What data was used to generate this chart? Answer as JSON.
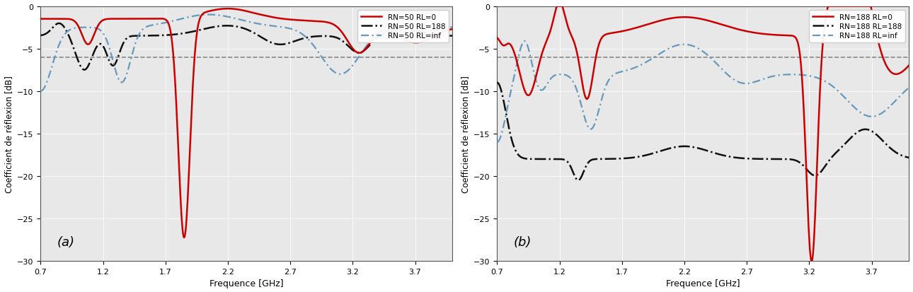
{
  "title_a": "(a)",
  "title_b": "(b)",
  "xlabel": "Frequence [GHz]",
  "ylabel": "Coefficient de réflexion [dB]",
  "xlim": [
    0.7,
    4.0
  ],
  "ylim": [
    -30,
    0
  ],
  "yticks": [
    0,
    -5,
    -10,
    -15,
    -20,
    -25,
    -30
  ],
  "xticks": [
    0.7,
    1.2,
    1.7,
    2.2,
    2.7,
    3.2,
    3.7
  ],
  "hline_y": -6.0,
  "hline_color": "#888888",
  "color_red": "#cc0000",
  "color_black": "#111111",
  "color_blue": "#6699bb",
  "legend_a": [
    "RN=50 RL=0",
    "RN=50 RL=188",
    "RN=50 RL=inf"
  ],
  "legend_b": [
    "RN=188 RL=0",
    "RN=188 RL=188",
    "RN=188 RL=inf"
  ],
  "background": "#e8e8e8"
}
